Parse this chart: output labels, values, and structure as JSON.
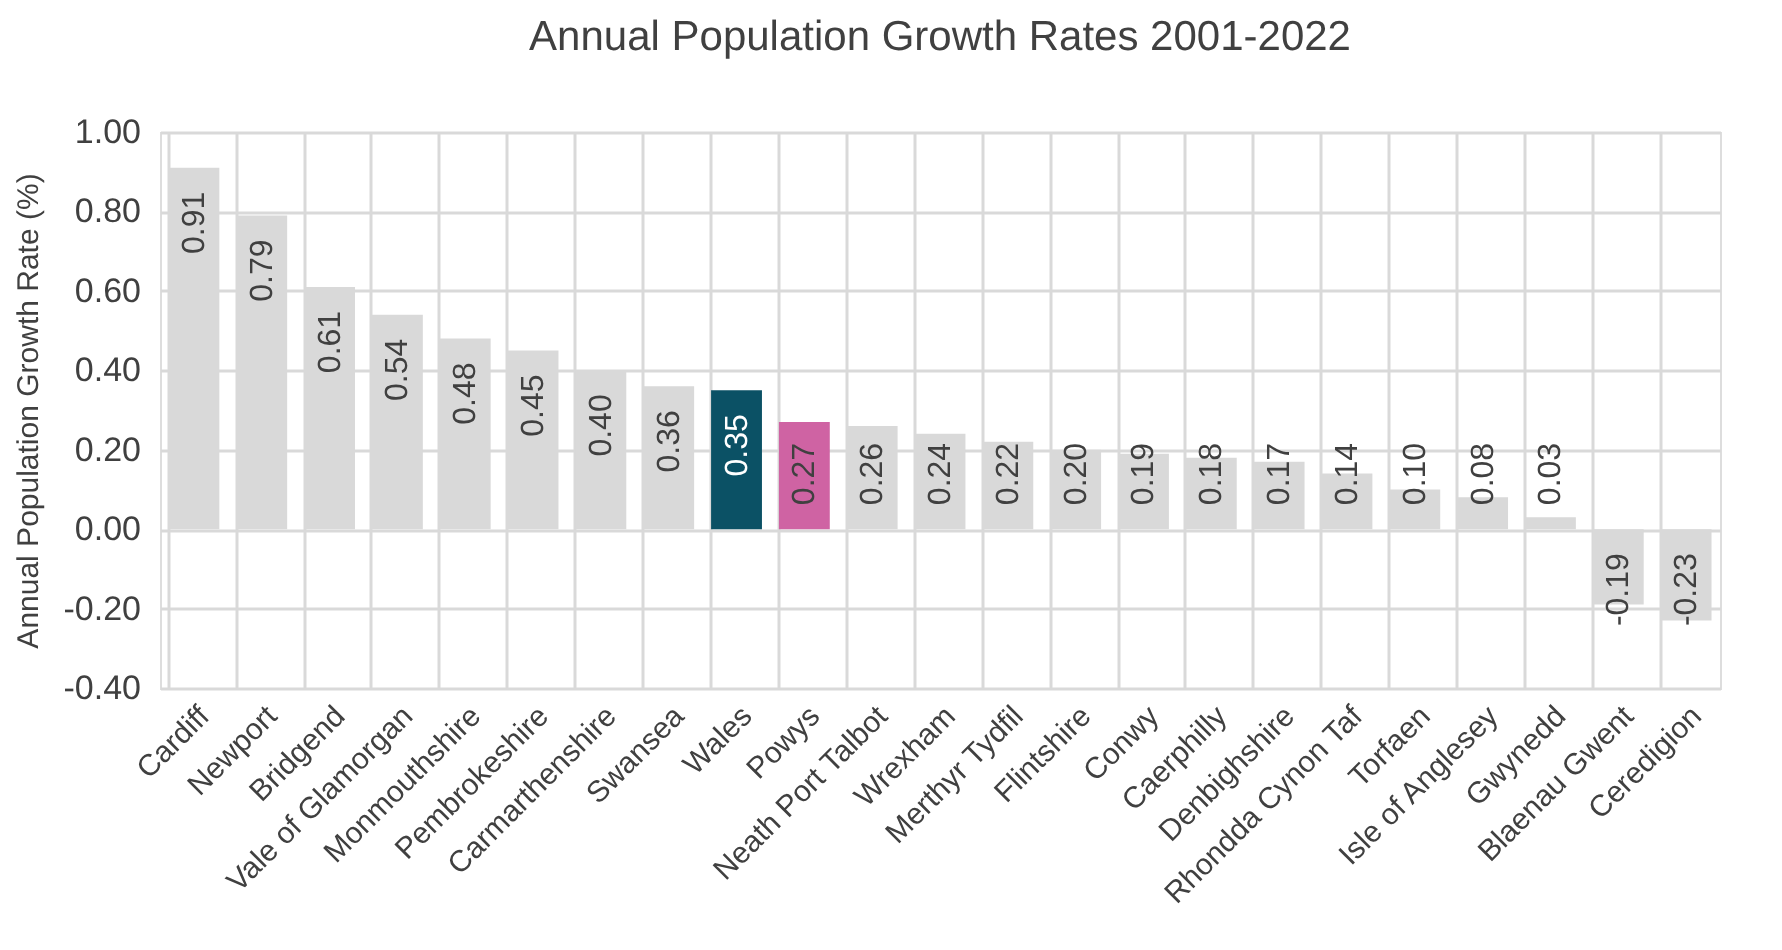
{
  "chart_data": {
    "type": "bar",
    "title": "Annual Population Growth Rates 2001-2022",
    "ylabel": "Annual Population Growth Rate (%)",
    "categories": [
      "Cardiff",
      "Newport",
      "Bridgend",
      "Vale of Glamorgan",
      "Monmouthshire",
      "Pembrokeshire",
      "Carmarthenshire",
      "Swansea",
      "Wales",
      "Powys",
      "Neath Port Talbot",
      "Wrexham",
      "Merthyr Tydfil",
      "Flintshire",
      "Conwy",
      "Caerphilly",
      "Denbighshire",
      "Rhondda Cynon Taf",
      "Torfaen",
      "Isle of Anglesey",
      "Gwynedd",
      "Blaenau Gwent",
      "Ceredigion"
    ],
    "values": [
      0.91,
      0.79,
      0.61,
      0.54,
      0.48,
      0.45,
      0.4,
      0.36,
      0.35,
      0.27,
      0.26,
      0.24,
      0.22,
      0.2,
      0.19,
      0.18,
      0.17,
      0.14,
      0.1,
      0.08,
      0.03,
      -0.19,
      -0.23
    ],
    "value_labels": [
      "0.91",
      "0.79",
      "0.61",
      "0.54",
      "0.48",
      "0.45",
      "0.40",
      "0.36",
      "0.35",
      "0.27",
      "0.26",
      "0.24",
      "0.22",
      "0.20",
      "0.19",
      "0.18",
      "0.17",
      "0.14",
      "0.10",
      "0.08",
      "0.03",
      "-0.19",
      "-0.23"
    ],
    "colors": [
      "#d9d9d9",
      "#d9d9d9",
      "#d9d9d9",
      "#d9d9d9",
      "#d9d9d9",
      "#d9d9d9",
      "#d9d9d9",
      "#d9d9d9",
      "#0b5165",
      "#cf63a3",
      "#d9d9d9",
      "#d9d9d9",
      "#d9d9d9",
      "#d9d9d9",
      "#d9d9d9",
      "#d9d9d9",
      "#d9d9d9",
      "#d9d9d9",
      "#d9d9d9",
      "#d9d9d9",
      "#d9d9d9",
      "#d9d9d9",
      "#d9d9d9"
    ],
    "ylim": [
      -0.4,
      1.0
    ],
    "yticks": [
      {
        "value": -0.4,
        "label": "-0.40"
      },
      {
        "value": -0.2,
        "label": "-0.20"
      },
      {
        "value": 0,
        "label": "0.00"
      },
      {
        "value": 0.2,
        "label": "0.20"
      },
      {
        "value": 0.4,
        "label": "0.40"
      },
      {
        "value": 0.6,
        "label": "0.60"
      },
      {
        "value": 0.8,
        "label": "0.80"
      },
      {
        "value": 1.0,
        "label": "1.00"
      }
    ],
    "grid": true
  }
}
